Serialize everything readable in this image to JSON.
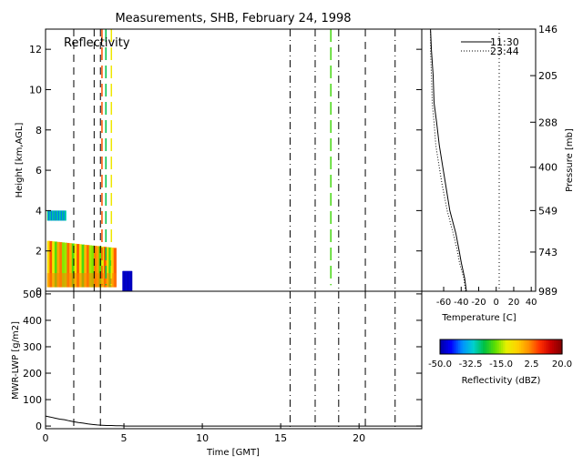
{
  "figure": {
    "title": "Measurements, SHB, February 24, 1998"
  },
  "chart_data": [
    {
      "id": "reflectivity",
      "type": "heatmap",
      "title": "Reflectivity",
      "xlabel": "",
      "ylabel": "Height [km,AGL]",
      "xlim": [
        0,
        24
      ],
      "ylim": [
        0,
        13
      ],
      "yticks": [
        0,
        2,
        4,
        6,
        8,
        10,
        12
      ],
      "vlines": [
        {
          "t": 1.8,
          "style": "dash"
        },
        {
          "t": 3.1,
          "style": "dash"
        },
        {
          "t": 3.5,
          "style": "dash"
        },
        {
          "t": 15.6,
          "style": "dashdot"
        },
        {
          "t": 17.2,
          "style": "dashdot"
        },
        {
          "t": 18.7,
          "style": "dashdot"
        },
        {
          "t": 20.4,
          "style": "dash"
        },
        {
          "t": 22.3,
          "style": "dashdot"
        }
      ],
      "cloud_regions": [
        {
          "t0": 0.1,
          "t1": 4.5,
          "z0": 0.2,
          "z1": 2.5,
          "dbz_range": [
            -20,
            5
          ]
        },
        {
          "t0": 0.1,
          "t1": 1.3,
          "z0": 3.5,
          "z1": 4.0,
          "dbz_range": [
            -40,
            -25
          ]
        },
        {
          "t0": 4.9,
          "t1": 5.5,
          "z0": 0.0,
          "z1": 1.0,
          "dbz_range": [
            -50,
            -45
          ]
        }
      ],
      "streaks": [
        {
          "t": 3.6,
          "z0": 0.3,
          "z1": 13,
          "dbz": 5
        },
        {
          "t": 3.85,
          "z0": 0.3,
          "z1": 13,
          "dbz": -25
        },
        {
          "t": 4.2,
          "z0": 0.3,
          "z1": 13,
          "dbz": -10
        },
        {
          "t": 18.2,
          "z0": 0.3,
          "z1": 13,
          "dbz": -20
        }
      ]
    },
    {
      "id": "sounding",
      "type": "line",
      "xlabel": "Temperature [C]",
      "ylabel": "Pressure [mb]",
      "xlim": [
        -85,
        45
      ],
      "xticks": [
        -60,
        -40,
        -20,
        0,
        20,
        40
      ],
      "pressure_ticks": [
        146,
        205,
        288,
        400,
        549,
        743,
        989
      ],
      "series": [
        {
          "name": "11:30",
          "style": "solid",
          "pressure": [
            989,
            900,
            800,
            743,
            650,
            549,
            450,
            400,
            340,
            288,
            250,
            205,
            170,
            146
          ],
          "temperature": [
            -34,
            -36,
            -40,
            -42,
            -46,
            -53,
            -58,
            -61,
            -65,
            -68,
            -71,
            -72,
            -74,
            -75
          ]
        },
        {
          "name": "23:44",
          "style": "dot",
          "pressure": [
            989,
            900,
            800,
            743,
            650,
            549,
            450,
            400,
            340,
            288,
            250,
            205,
            170,
            146
          ],
          "temperature": [
            -35,
            -37,
            -42,
            -44,
            -49,
            -56,
            -62,
            -65,
            -69,
            -71,
            -73,
            -74,
            -75,
            -75
          ]
        }
      ],
      "reference_line": {
        "temperature": 0,
        "style": "dot"
      }
    },
    {
      "id": "lwp",
      "type": "line",
      "xlabel": "Time [GMT]",
      "ylabel": "MWR-LWP [g/m2]",
      "xlim": [
        0,
        24
      ],
      "ylim": [
        -10,
        510
      ],
      "xticks": [
        0,
        5,
        10,
        15,
        20
      ],
      "yticks": [
        0,
        100,
        200,
        300,
        400,
        500
      ],
      "vlines": [
        {
          "t": 1.8,
          "style": "dash"
        },
        {
          "t": 3.5,
          "style": "dash"
        },
        {
          "t": 15.6,
          "style": "dashdot"
        },
        {
          "t": 17.2,
          "style": "dashdot"
        },
        {
          "t": 18.7,
          "style": "dashdot"
        },
        {
          "t": 20.4,
          "style": "dash"
        },
        {
          "t": 22.3,
          "style": "dashdot"
        }
      ],
      "x": [
        0,
        0.3,
        0.6,
        0.9,
        1.2,
        1.5,
        1.8,
        2.1,
        2.4,
        2.7,
        3.0,
        3.3,
        3.6,
        3.9,
        4.2,
        4.5,
        4.8,
        5.1,
        6,
        8,
        10,
        12,
        14,
        16,
        18,
        20,
        22,
        24
      ],
      "y": [
        38,
        34,
        30,
        26,
        24,
        20,
        16,
        13,
        11,
        8,
        6,
        4,
        3,
        2,
        2,
        1,
        1,
        0,
        0,
        0,
        0,
        0,
        0,
        0,
        0,
        0,
        0,
        0
      ]
    },
    {
      "id": "colorbar",
      "type": "heatmap",
      "xlabel": "Reflectivity (dBZ)",
      "range": [
        -50,
        20
      ],
      "tick_labels": [
        "-50.0",
        "-32.5",
        "-15.0",
        "2.5",
        "20.0"
      ],
      "colors": [
        "#0000a0",
        "#0000ff",
        "#0090ff",
        "#00d0d0",
        "#00c040",
        "#60e000",
        "#e8f000",
        "#ffd000",
        "#ff9000",
        "#ff3000",
        "#c80000",
        "#800000"
      ]
    }
  ]
}
